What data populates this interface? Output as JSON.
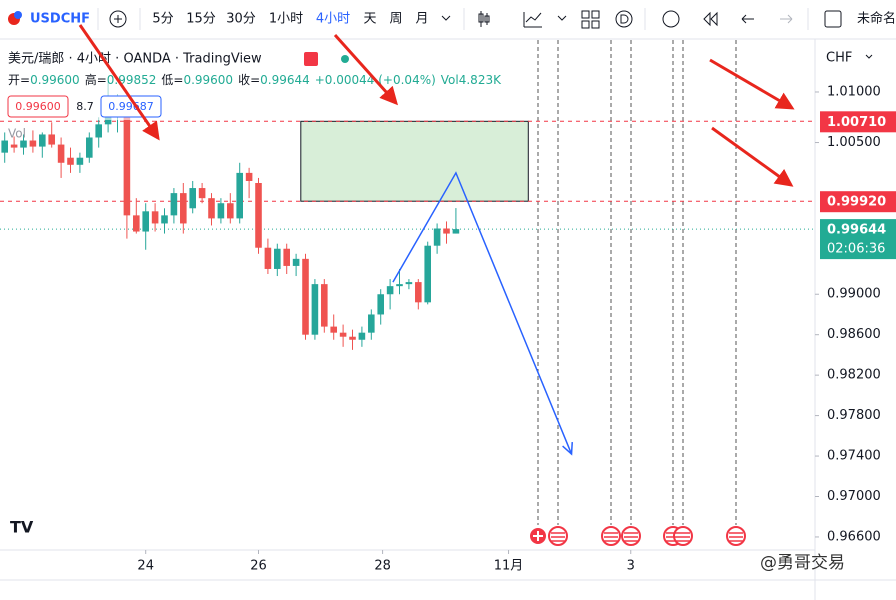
{
  "toolbar": {
    "symbol": "USDCHF",
    "intervals": [
      "5分",
      "15分",
      "30分",
      "1小时",
      "4小时",
      "天",
      "周",
      "月"
    ],
    "active_interval": 4,
    "layout_name": "未命名"
  },
  "chart_data": {
    "type": "candlestick",
    "title": "美元/瑞郎 · 4小时 · OANDA · TradingView",
    "ohlc_info": [
      "开=",
      "0.99600",
      "高=",
      "0.99852",
      "低=",
      "0.99600",
      "收=",
      "0.99644",
      "+0.00044 (+0.04%)",
      "Vol",
      "4.823K"
    ],
    "indicator_boxes": [
      "0.99600",
      "8.7",
      "0.99687"
    ],
    "indicator_name": "Vol",
    "open": [
      1.004,
      1.0048,
      1.0045,
      1.0052,
      1.0046,
      1.0058,
      1.0048,
      1.0035,
      1.0028,
      1.0035,
      1.0055,
      1.0068,
      1.0085,
      1.008,
      0.9978,
      0.9962,
      0.9982,
      0.997,
      0.9978,
      1.0,
      0.9985,
      1.0005,
      0.9995,
      0.9975,
      0.999,
      0.9975,
      1.002,
      1.001,
      0.9946,
      0.9925,
      0.9945,
      0.9928,
      0.9935,
      0.986,
      0.991,
      0.9868,
      0.9862,
      0.9858,
      0.9855,
      0.9862,
      0.988,
      0.99,
      0.9908,
      0.991,
      0.9912,
      0.9892,
      0.9948,
      0.9965,
      0.996
    ],
    "high": [
      1.006,
      1.0056,
      1.0058,
      1.0062,
      1.006,
      1.007,
      1.0055,
      1.0045,
      1.004,
      1.006,
      1.0075,
      1.011,
      1.0098,
      1.009,
      0.9995,
      0.999,
      0.999,
      0.9985,
      1.0005,
      1.001,
      1.0012,
      1.001,
      1.0,
      0.9995,
      1.0,
      1.003,
      1.0025,
      1.0015,
      0.9955,
      0.995,
      0.995,
      0.994,
      0.994,
      0.9915,
      0.9915,
      0.988,
      0.987,
      0.9865,
      0.9868,
      0.9885,
      0.9905,
      0.9915,
      0.9925,
      0.9915,
      0.9915,
      0.9952,
      0.997,
      0.9972,
      0.99852
    ],
    "low": [
      1.003,
      1.004,
      1.0038,
      1.004,
      1.0035,
      1.0045,
      1.0015,
      1.002,
      1.002,
      1.003,
      1.0045,
      1.006,
      1.006,
      0.9955,
      0.996,
      0.9944,
      0.9962,
      0.996,
      0.997,
      0.996,
      0.998,
      0.999,
      0.9968,
      0.997,
      0.997,
      0.997,
      0.9995,
      0.994,
      0.992,
      0.9918,
      0.992,
      0.9918,
      0.9855,
      0.9855,
      0.9862,
      0.9855,
      0.9848,
      0.9845,
      0.9848,
      0.9855,
      0.987,
      0.9885,
      0.99,
      0.9905,
      0.9885,
      0.989,
      0.994,
      0.995,
      0.996
    ],
    "close": [
      1.0052,
      1.0045,
      1.0052,
      1.0046,
      1.0058,
      1.0048,
      1.003,
      1.0028,
      1.0035,
      1.0055,
      1.0068,
      1.0085,
      1.009,
      0.9978,
      0.9962,
      0.9982,
      0.997,
      0.9978,
      1.0,
      0.997,
      1.0005,
      0.9995,
      0.9975,
      0.999,
      0.9975,
      1.002,
      1.0012,
      0.9946,
      0.9925,
      0.9945,
      0.9928,
      0.9935,
      0.986,
      0.991,
      0.9868,
      0.9862,
      0.9858,
      0.9855,
      0.9862,
      0.988,
      0.99,
      0.9908,
      0.991,
      0.9912,
      0.9892,
      0.9948,
      0.9965,
      0.996,
      0.99644
    ],
    "up_color": "#26a69a",
    "down_color": "#ef5350",
    "xlim": [
      -0.5,
      86.2
    ],
    "xticks": [
      {
        "value": 15,
        "label": "24"
      },
      {
        "value": 27,
        "label": "26"
      },
      {
        "value": 40.2,
        "label": "28"
      },
      {
        "value": 53.6,
        "label": "11月"
      },
      {
        "value": 66.6,
        "label": "3"
      }
    ],
    "ylim": [
      0.96471,
      1.01514
    ],
    "yticks": [
      {
        "value": 1.01,
        "label": "1.01000"
      },
      {
        "value": 1.005,
        "label": "1.00500"
      },
      {
        "value": 0.99,
        "label": "0.99000"
      },
      {
        "value": 0.986,
        "label": "0.98600"
      },
      {
        "value": 0.982,
        "label": "0.98200"
      },
      {
        "value": 0.978,
        "label": "0.97800"
      },
      {
        "value": 0.974,
        "label": "0.97400"
      },
      {
        "value": 0.97,
        "label": "0.97000"
      },
      {
        "value": 0.966,
        "label": "0.96600"
      }
    ],
    "y_unit": "CHF",
    "grid": false,
    "price_lines": [
      {
        "value": 1.0071,
        "label": "1.00710",
        "color": "#f23645"
      },
      {
        "value": 0.9992,
        "label": "0.99920",
        "color": "#f23645"
      },
      {
        "value": 0.99644,
        "label": "0.99644",
        "countdown": "02:06:36",
        "color": "#22ab94"
      }
    ],
    "drawings": {
      "rectangle": {
        "x": [
          31.5,
          55.7
        ],
        "y": [
          1.0071,
          0.9992
        ],
        "color": "#d8eed8"
      },
      "path": {
        "x": [
          41.3,
          48,
          60.3
        ],
        "y": [
          0.9912,
          1.002,
          0.9742
        ],
        "color": "#2962ff"
      }
    },
    "watermark": "@勇哥交易"
  }
}
